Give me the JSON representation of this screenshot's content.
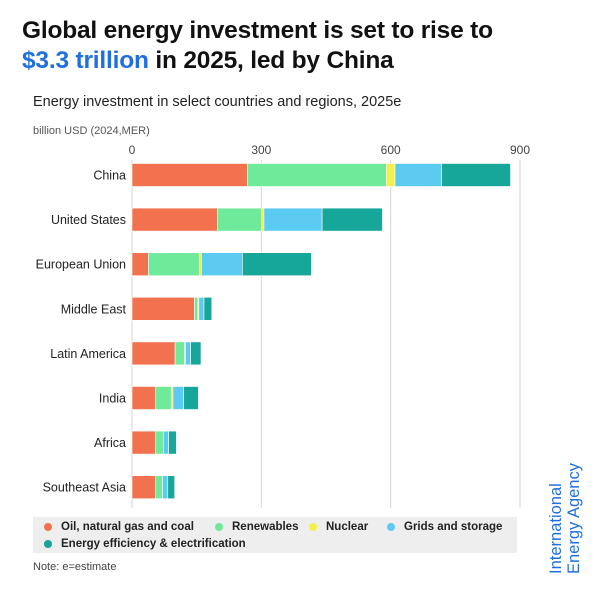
{
  "title": {
    "line1": "Global energy investment is set to rise to",
    "highlight": "$3.3 trillion",
    "line2_rest": " in 2025, led by China"
  },
  "subtitle": "Energy investment in select countries and regions, 2025e",
  "unit_label": "billion USD (2024,MER)",
  "note": "Note: e=estimate",
  "brand": {
    "line1": "International",
    "line2": "Energy Agency",
    "color": "#1f6fe0"
  },
  "legend": [
    {
      "label": "Oil, natural gas and coal",
      "color": "#f2714f"
    },
    {
      "label": "Renewables",
      "color": "#6fe99a"
    },
    {
      "label": "Nuclear",
      "color": "#f4f04a"
    },
    {
      "label": "Grids and storage",
      "color": "#5bcbf2"
    },
    {
      "label": "Energy efficiency & electrification",
      "color": "#17a69a"
    }
  ],
  "chart_data": {
    "type": "bar",
    "orientation": "horizontal",
    "stacked": true,
    "categories": [
      "China",
      "United States",
      "European Union",
      "Middle East",
      "Latin America",
      "India",
      "Africa",
      "Southeast Asia"
    ],
    "series": [
      {
        "name": "Oil, natural gas and coal",
        "color": "#f2714f",
        "values": [
          268,
          198,
          38,
          145,
          100,
          55,
          55,
          55
        ]
      },
      {
        "name": "Renewables",
        "color": "#6fe99a",
        "values": [
          322,
          102,
          118,
          8,
          22,
          36,
          18,
          16
        ]
      },
      {
        "name": "Nuclear",
        "color": "#f4f04a",
        "values": [
          20,
          6,
          5,
          2,
          2,
          4,
          0,
          0
        ]
      },
      {
        "name": "Grids and storage",
        "color": "#5bcbf2",
        "values": [
          108,
          135,
          95,
          12,
          12,
          25,
          12,
          12
        ]
      },
      {
        "name": "Energy efficiency & electrification",
        "color": "#17a69a",
        "values": [
          160,
          140,
          160,
          18,
          24,
          34,
          18,
          16
        ]
      }
    ],
    "xlim": [
      0,
      900
    ],
    "xticks": [
      0,
      300,
      600,
      900
    ],
    "grid": true,
    "legend_position": "bottom"
  }
}
